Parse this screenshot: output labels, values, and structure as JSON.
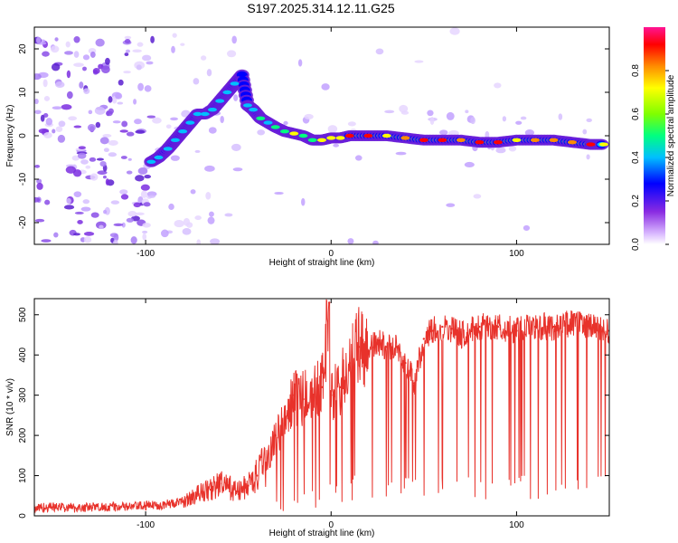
{
  "title": "S197.2025.314.12.11.G25",
  "colors": {
    "snr_line": "#e8322b",
    "frame": "#000000",
    "ridge_scale": [
      "#8a2be2",
      "#0000ff",
      "#00e5ff",
      "#00ff00",
      "#ffff00",
      "#ff8c00",
      "#ff0000",
      "#ff00aa"
    ]
  },
  "chart_data": [
    {
      "type": "heatmap",
      "name": "spectrogram",
      "xlabel": "Height of straight line (km)",
      "ylabel": "Frequency (Hz)",
      "xlim": [
        -160,
        150
      ],
      "ylim": [
        -25,
        25
      ],
      "x_ticks": [
        -100,
        0,
        100
      ],
      "x_tick_labels": [
        "-100",
        "0",
        "100"
      ],
      "y_ticks": [
        -20,
        -10,
        0,
        10,
        20
      ],
      "y_tick_labels": [
        "-20",
        "-10",
        "0",
        "10",
        "20"
      ],
      "grid": false,
      "ridge_description": "frequency vs height of the dominant ridge",
      "ridge": {
        "x": [
          -97,
          -93,
          -88,
          -84,
          -80,
          -76,
          -72,
          -68,
          -64,
          -60,
          -56,
          -52,
          -48,
          -45,
          -42,
          -38,
          -34,
          -30,
          -25,
          -20,
          -15,
          -10,
          -5,
          0,
          5,
          10,
          20,
          30,
          40,
          50,
          60,
          70,
          80,
          90,
          100,
          110,
          120,
          130,
          140,
          147
        ],
        "y": [
          -6,
          -5,
          -3,
          -1,
          1,
          3,
          5,
          5,
          6,
          8,
          10,
          12,
          14,
          7,
          6,
          4,
          3,
          2,
          1,
          0.5,
          0,
          -1,
          -1,
          -0.5,
          -0.5,
          0,
          0,
          0,
          -0.5,
          -1,
          -1,
          -1,
          -1.5,
          -1.5,
          -1,
          -1,
          -1,
          -1.5,
          -2,
          -2
        ],
        "amplitude": [
          0.3,
          0.35,
          0.35,
          0.35,
          0.3,
          0.3,
          0.35,
          0.4,
          0.35,
          0.3,
          0.35,
          0.3,
          0.25,
          0.35,
          0.4,
          0.45,
          0.4,
          0.45,
          0.55,
          0.7,
          0.5,
          0.55,
          0.6,
          0.65,
          0.7,
          0.95,
          0.9,
          0.65,
          0.85,
          0.95,
          0.95,
          0.8,
          0.95,
          0.9,
          0.7,
          0.85,
          0.8,
          0.8,
          0.95,
          0.6
        ]
      },
      "colorbar": {
        "label": "Normalized spectral amplitude",
        "range": [
          0.0,
          1.0
        ],
        "ticks": [
          0.0,
          0.2,
          0.4,
          0.6,
          0.8
        ],
        "tick_labels": [
          "0.0",
          "0.2",
          "0.4",
          "0.6",
          "0.8"
        ]
      }
    },
    {
      "type": "line",
      "name": "snr",
      "xlabel": "Height of straight line (km)",
      "ylabel": "SNR (10 * v/v)",
      "xlim": [
        -160,
        150
      ],
      "ylim": [
        0,
        540
      ],
      "x_ticks": [
        -100,
        0,
        100
      ],
      "x_tick_labels": [
        "-100",
        "0",
        "100"
      ],
      "y_ticks": [
        0,
        100,
        200,
        300,
        400,
        500
      ],
      "y_tick_labels": [
        "0",
        "100",
        "200",
        "300",
        "400",
        "500"
      ],
      "grid": false,
      "series": [
        {
          "name": "SNR",
          "x": [
            -160,
            -150,
            -140,
            -130,
            -120,
            -110,
            -100,
            -90,
            -80,
            -75,
            -70,
            -65,
            -60,
            -55,
            -50,
            -45,
            -40,
            -35,
            -30,
            -25,
            -20,
            -15,
            -10,
            -5,
            -1,
            0,
            5,
            10,
            15,
            20,
            25,
            30,
            35,
            40,
            45,
            50,
            55,
            60,
            65,
            70,
            80,
            90,
            100,
            110,
            120,
            130,
            140,
            150
          ],
          "y": [
            20,
            22,
            20,
            21,
            23,
            22,
            25,
            28,
            35,
            45,
            60,
            65,
            80,
            70,
            60,
            75,
            100,
            130,
            200,
            230,
            300,
            290,
            300,
            320,
            530,
            300,
            320,
            380,
            420,
            410,
            430,
            420,
            420,
            380,
            330,
            440,
            460,
            470,
            465,
            450,
            470,
            470,
            460,
            470,
            470,
            480,
            470,
            460
          ]
        }
      ]
    }
  ]
}
